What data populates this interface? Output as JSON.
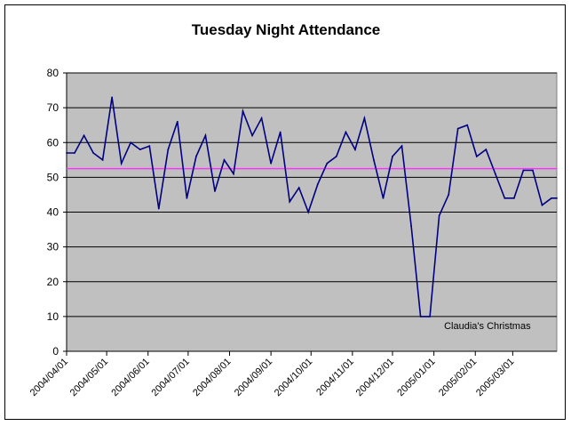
{
  "chart_data": {
    "type": "line",
    "title": "Tuesday Night Attendance",
    "xlabel": "",
    "ylabel": "",
    "ylim": [
      0,
      80
    ],
    "yticks": [
      0,
      10,
      20,
      30,
      40,
      50,
      60,
      70,
      80
    ],
    "xlim": [
      "2004-04-01",
      "2005-04-03"
    ],
    "xtick_labels": [
      "2004/04/01",
      "2004/05/01",
      "2004/06/01",
      "2004/07/01",
      "2004/08/01",
      "2004/09/01",
      "2004/10/01",
      "2004/11/01",
      "2004/12/01",
      "2005/01/01",
      "2005/02/01",
      "2005/03/01"
    ],
    "grid": "horizontal",
    "legend": "none",
    "plot_background": "#C0C0C0",
    "series": [
      {
        "color": "#000080",
        "x": [
          "2004-04-01",
          "2004-04-07",
          "2004-04-14",
          "2004-04-21",
          "2004-04-28",
          "2004-05-05",
          "2004-05-12",
          "2004-05-19",
          "2004-05-26",
          "2004-06-02",
          "2004-06-09",
          "2004-06-16",
          "2004-06-23",
          "2004-06-30",
          "2004-07-07",
          "2004-07-14",
          "2004-07-21",
          "2004-07-28",
          "2004-08-04",
          "2004-08-11",
          "2004-08-18",
          "2004-08-25",
          "2004-09-01",
          "2004-09-08",
          "2004-09-15",
          "2004-09-22",
          "2004-09-29",
          "2004-10-06",
          "2004-10-13",
          "2004-10-20",
          "2004-10-27",
          "2004-11-03",
          "2004-11-10",
          "2004-11-17",
          "2004-11-24",
          "2004-12-01",
          "2004-12-08",
          "2004-12-15",
          "2004-12-22",
          "2004-12-29",
          "2005-01-05",
          "2005-01-12",
          "2005-01-19",
          "2005-01-26",
          "2005-02-02",
          "2005-02-09",
          "2005-02-16",
          "2005-02-23",
          "2005-03-02",
          "2005-03-09",
          "2005-03-16",
          "2005-03-23",
          "2005-03-30",
          "2005-04-03"
        ],
        "values": [
          57,
          57,
          62,
          57,
          55,
          73,
          54,
          60,
          58,
          59,
          41,
          58,
          66,
          44,
          56,
          62,
          46,
          55,
          51,
          69,
          62,
          67,
          54,
          63,
          43,
          47,
          40,
          48,
          54,
          56,
          63,
          58,
          67,
          55,
          44,
          56,
          59,
          36,
          10,
          10,
          39,
          45,
          64,
          65,
          56,
          58,
          51,
          44,
          44,
          52,
          52,
          42,
          44,
          44
        ]
      }
    ],
    "reference_line": {
      "value": 52.5,
      "color": "#FF33FF"
    },
    "annotations": [
      {
        "text": "Claudia's Christmas",
        "x": "2004-12-29",
        "y": 10
      }
    ]
  }
}
